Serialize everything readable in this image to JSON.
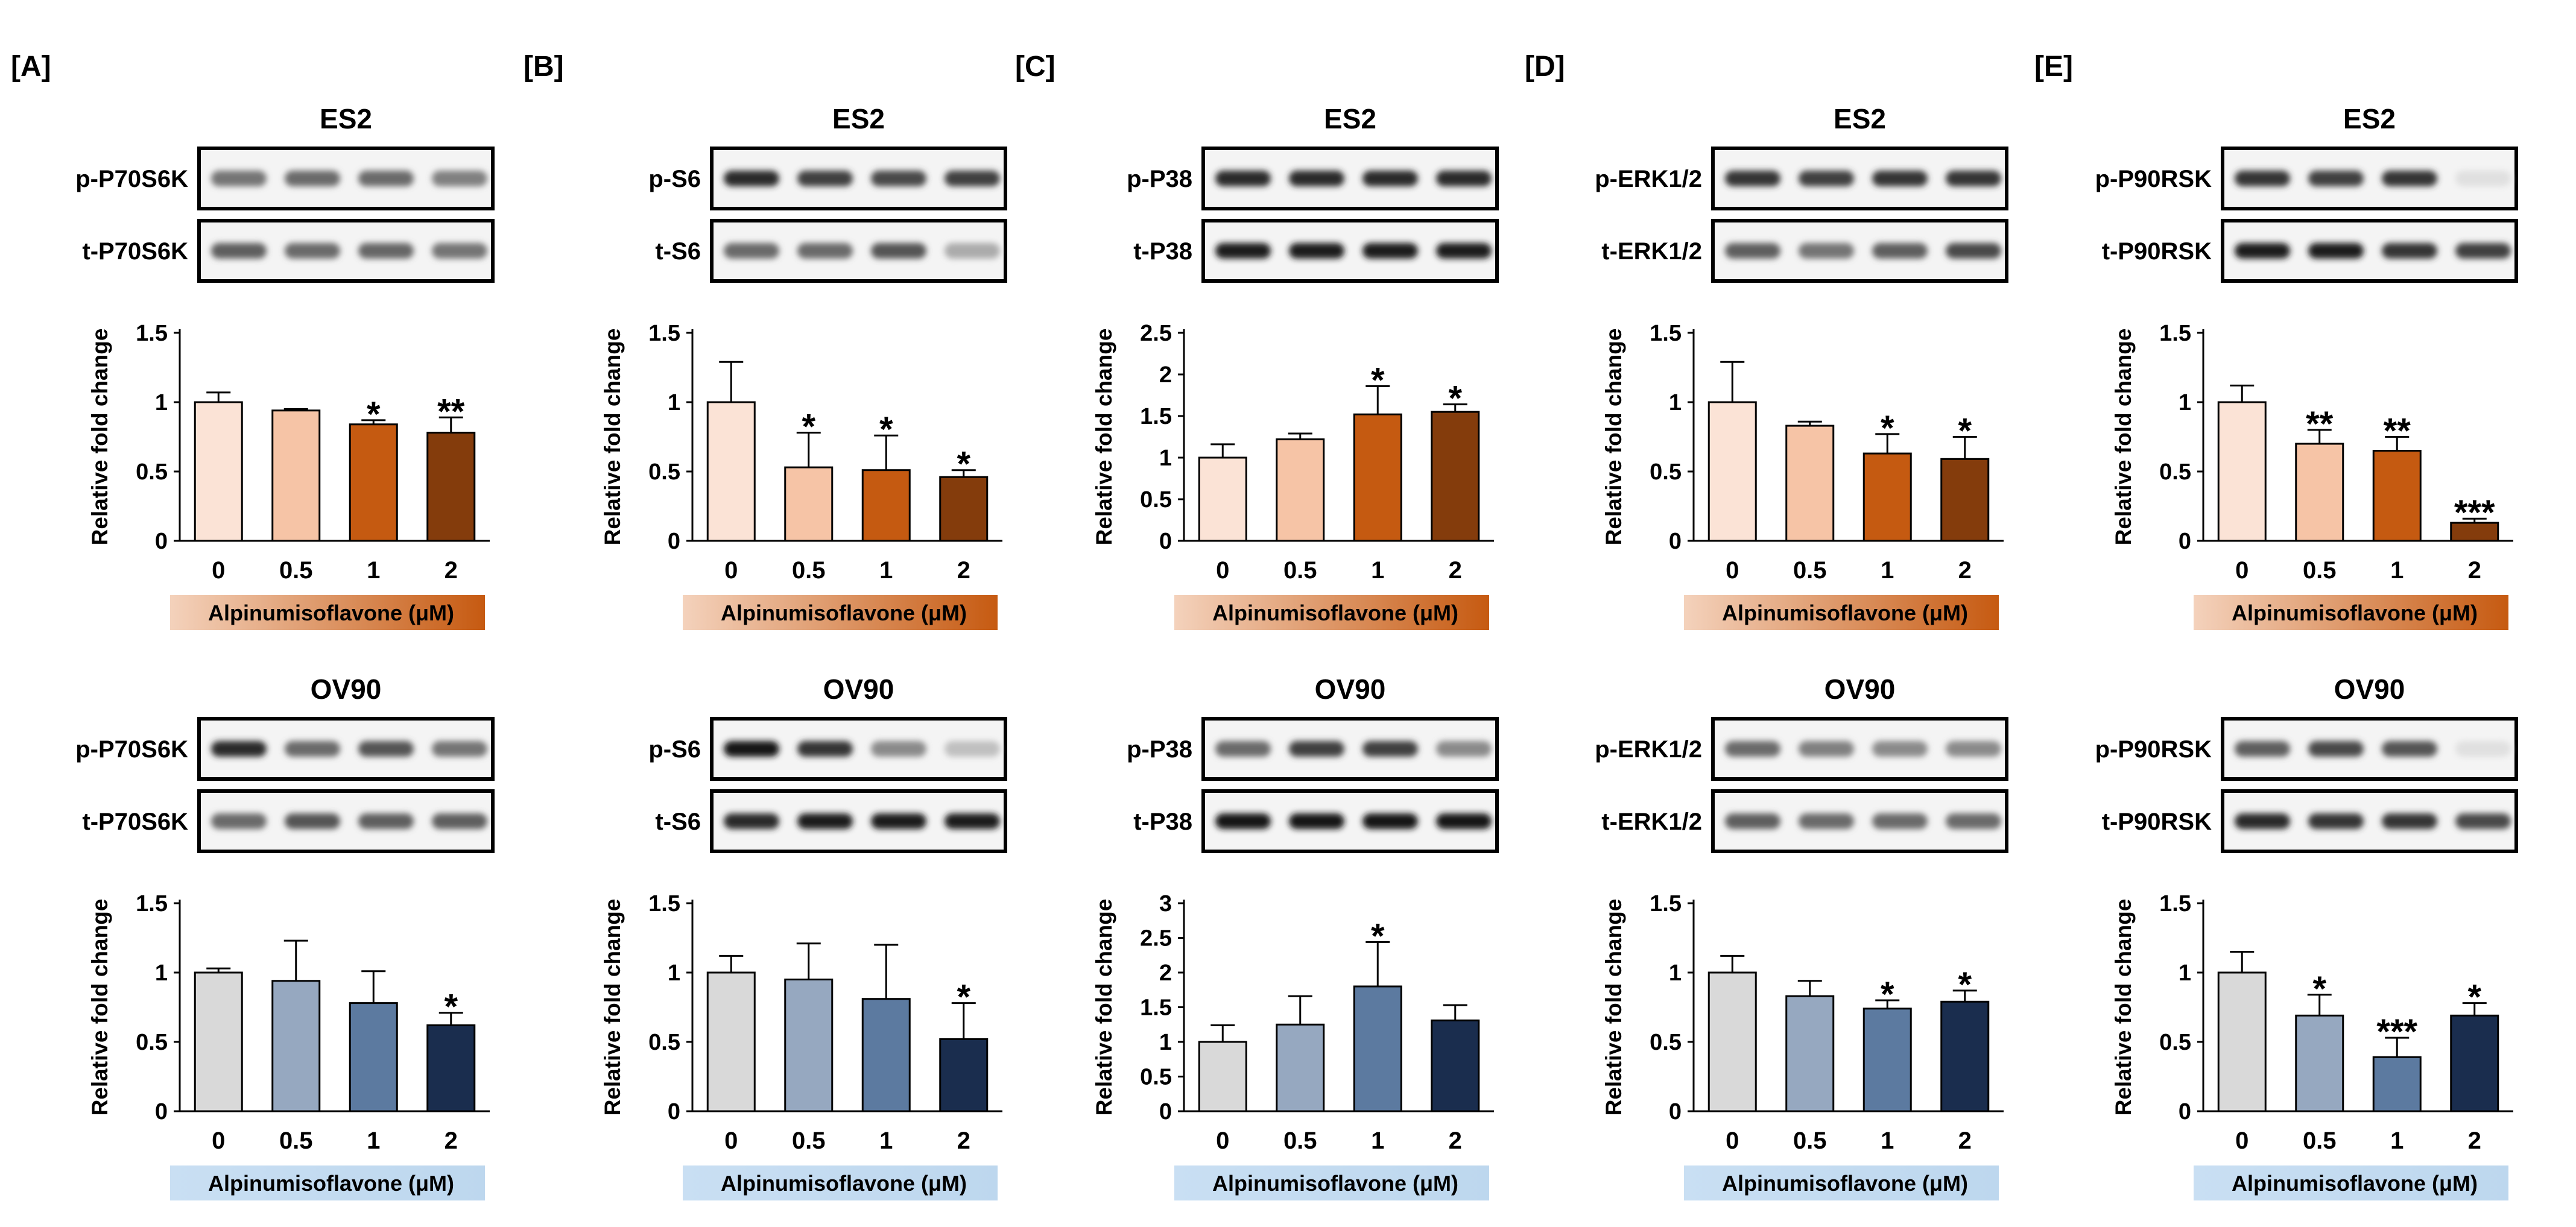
{
  "colors": {
    "es2": [
      "#fbe3d6",
      "#f6c4a6",
      "#c55a11",
      "#843c0c"
    ],
    "es2_bar": [
      "#f4d2bc",
      "#c65a11"
    ],
    "ov90": [
      "#d9d9d9",
      "#96a8c0",
      "#5c7aa0",
      "#1a2d4e"
    ],
    "ov90_bar": [
      "#c9dff3",
      "#bdd7ee"
    ],
    "outline": "#000000"
  },
  "panels": [
    {
      "label": "[A]",
      "rows": [
        {
          "cell": "ES2",
          "bands": [
            "p-P70S6K",
            "t-P70S6K"
          ]
        },
        {
          "cell": "OV90",
          "bands": [
            "p-P70S6K",
            "t-P70S6K"
          ]
        }
      ]
    },
    {
      "label": "[B]",
      "rows": [
        {
          "cell": "ES2",
          "bands": [
            "p-S6",
            "t-S6"
          ]
        },
        {
          "cell": "OV90",
          "bands": [
            "p-S6",
            "t-S6"
          ]
        }
      ]
    },
    {
      "label": "[C]",
      "rows": [
        {
          "cell": "ES2",
          "bands": [
            "p-P38",
            "t-P38"
          ]
        },
        {
          "cell": "OV90",
          "bands": [
            "p-P38",
            "t-P38"
          ]
        }
      ]
    },
    {
      "label": "[D]",
      "rows": [
        {
          "cell": "ES2",
          "bands": [
            "p-ERK1/2",
            "t-ERK1/2"
          ]
        },
        {
          "cell": "OV90",
          "bands": [
            "p-ERK1/2",
            "t-ERK1/2"
          ]
        }
      ]
    },
    {
      "label": "[E]",
      "rows": [
        {
          "cell": "ES2",
          "bands": [
            "p-P90RSK",
            "t-P90RSK"
          ]
        },
        {
          "cell": "OV90",
          "bands": [
            "p-P90RSK",
            "t-P90RSK"
          ]
        }
      ]
    }
  ],
  "chart_data": [
    {
      "type": "bar",
      "panel": "[A]",
      "cell_line": "ES2",
      "ylabel": "Relative fold change",
      "xlabel": "Alpinumisoflavone (μM)",
      "categories": [
        "0",
        "0.5",
        "1",
        "2"
      ],
      "values": [
        1.0,
        0.94,
        0.84,
        0.78
      ],
      "errors": [
        0.07,
        0.01,
        0.03,
        0.11
      ],
      "significance": [
        "",
        "",
        "*",
        "**"
      ],
      "ylim": [
        0,
        1.5
      ],
      "yticks": [
        "0",
        "0.5",
        "1",
        "1.5"
      ]
    },
    {
      "type": "bar",
      "panel": "[B]",
      "cell_line": "ES2",
      "ylabel": "Relative fold change",
      "xlabel": "Alpinumisoflavone (μM)",
      "categories": [
        "0",
        "0.5",
        "1",
        "2"
      ],
      "values": [
        1.0,
        0.53,
        0.51,
        0.46
      ],
      "errors": [
        0.29,
        0.25,
        0.25,
        0.05
      ],
      "significance": [
        "",
        "*",
        "*",
        "*"
      ],
      "ylim": [
        0,
        1.5
      ],
      "yticks": [
        "0",
        "0.5",
        "1",
        "1.5"
      ]
    },
    {
      "type": "bar",
      "panel": "[C]",
      "cell_line": "ES2",
      "ylabel": "Relative fold change",
      "xlabel": "Alpinumisoflavone (μM)",
      "categories": [
        "0",
        "0.5",
        "1",
        "2"
      ],
      "values": [
        1.0,
        1.22,
        1.52,
        1.55
      ],
      "errors": [
        0.16,
        0.07,
        0.34,
        0.09
      ],
      "significance": [
        "",
        "",
        "*",
        "*"
      ],
      "ylim": [
        0,
        2.5
      ],
      "yticks": [
        "0",
        "0.5",
        "1",
        "1.5",
        "2",
        "2.5"
      ]
    },
    {
      "type": "bar",
      "panel": "[D]",
      "cell_line": "ES2",
      "ylabel": "Relative fold change",
      "xlabel": "Alpinumisoflavone (μM)",
      "categories": [
        "0",
        "0.5",
        "1",
        "2"
      ],
      "values": [
        1.0,
        0.83,
        0.63,
        0.59
      ],
      "errors": [
        0.29,
        0.03,
        0.14,
        0.16
      ],
      "significance": [
        "",
        "",
        "*",
        "*"
      ],
      "ylim": [
        0,
        1.5
      ],
      "yticks": [
        "0",
        "0.5",
        "1",
        "1.5"
      ]
    },
    {
      "type": "bar",
      "panel": "[E]",
      "cell_line": "ES2",
      "ylabel": "Relative fold change",
      "xlabel": "Alpinumisoflavone (μM)",
      "categories": [
        "0",
        "0.5",
        "1",
        "2"
      ],
      "values": [
        1.0,
        0.7,
        0.65,
        0.13
      ],
      "errors": [
        0.12,
        0.1,
        0.1,
        0.03
      ],
      "significance": [
        "",
        "**",
        "**",
        "***"
      ],
      "ylim": [
        0,
        1.5
      ],
      "yticks": [
        "0",
        "0.5",
        "1",
        "1.5"
      ]
    },
    {
      "type": "bar",
      "panel": "[A]",
      "cell_line": "OV90",
      "ylabel": "Relative fold change",
      "xlabel": "Alpinumisoflavone (μM)",
      "categories": [
        "0",
        "0.5",
        "1",
        "2"
      ],
      "values": [
        1.0,
        0.94,
        0.78,
        0.62
      ],
      "errors": [
        0.03,
        0.29,
        0.23,
        0.09
      ],
      "significance": [
        "",
        "",
        "",
        "*"
      ],
      "ylim": [
        0,
        1.5
      ],
      "yticks": [
        "0",
        "0.5",
        "1",
        "1.5"
      ]
    },
    {
      "type": "bar",
      "panel": "[B]",
      "cell_line": "OV90",
      "ylabel": "Relative fold change",
      "xlabel": "Alpinumisoflavone (μM)",
      "categories": [
        "0",
        "0.5",
        "1",
        "2"
      ],
      "values": [
        1.0,
        0.95,
        0.81,
        0.52
      ],
      "errors": [
        0.12,
        0.26,
        0.39,
        0.26
      ],
      "significance": [
        "",
        "",
        "",
        "*"
      ],
      "ylim": [
        0,
        1.5
      ],
      "yticks": [
        "0",
        "0.5",
        "1",
        "1.5"
      ]
    },
    {
      "type": "bar",
      "panel": "[C]",
      "cell_line": "OV90",
      "ylabel": "Relative fold change",
      "xlabel": "Alpinumisoflavone (μM)",
      "categories": [
        "0",
        "0.5",
        "1",
        "2"
      ],
      "values": [
        1.0,
        1.25,
        1.8,
        1.31
      ],
      "errors": [
        0.24,
        0.41,
        0.64,
        0.22
      ],
      "significance": [
        "",
        "",
        "*",
        ""
      ],
      "ylim": [
        0,
        3
      ],
      "yticks": [
        "0",
        "0.5",
        "1",
        "1.5",
        "2",
        "2.5",
        "3"
      ]
    },
    {
      "type": "bar",
      "panel": "[D]",
      "cell_line": "OV90",
      "ylabel": "Relative fold change",
      "xlabel": "Alpinumisoflavone (μM)",
      "categories": [
        "0",
        "0.5",
        "1",
        "2"
      ],
      "values": [
        1.0,
        0.83,
        0.74,
        0.79
      ],
      "errors": [
        0.12,
        0.11,
        0.06,
        0.08
      ],
      "significance": [
        "",
        "",
        "*",
        "*"
      ],
      "ylim": [
        0,
        1.5
      ],
      "yticks": [
        "0",
        "0.5",
        "1",
        "1.5"
      ]
    },
    {
      "type": "bar",
      "panel": "[E]",
      "cell_line": "OV90",
      "ylabel": "Relative fold change",
      "xlabel": "Alpinumisoflavone (μM)",
      "categories": [
        "0",
        "0.5",
        "1",
        "2"
      ],
      "values": [
        1.0,
        0.69,
        0.39,
        0.69
      ],
      "errors": [
        0.15,
        0.15,
        0.14,
        0.09
      ],
      "significance": [
        "",
        "*",
        "***",
        "*"
      ],
      "ylim": [
        0,
        1.5
      ],
      "yticks": [
        "0",
        "0.5",
        "1",
        "1.5"
      ]
    }
  ]
}
